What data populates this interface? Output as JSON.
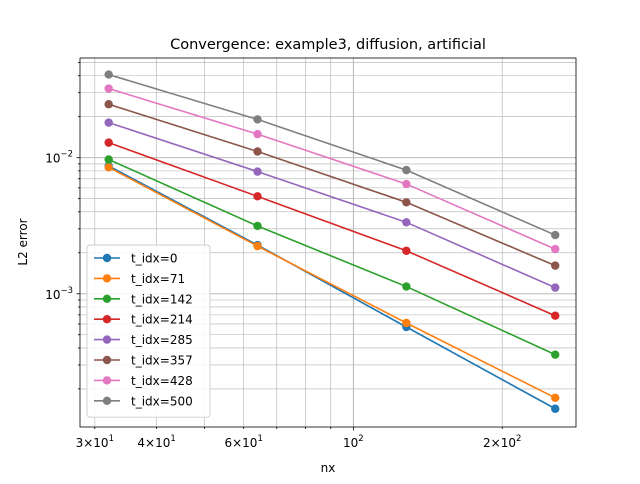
{
  "chart_data": {
    "type": "line",
    "title": "Convergence: example3, diffusion, artificial",
    "xlabel": "nx",
    "ylabel": "L2 error",
    "xscale": "log",
    "yscale": "log",
    "xlim": [
      28,
      282
    ],
    "ylim": [
      0.000105,
      0.054
    ],
    "grid": true,
    "legend_loc": "lower-left",
    "x": [
      32,
      64,
      128,
      256
    ],
    "x_ticks": [
      {
        "value": 30,
        "base": "3×10",
        "exp": "1"
      },
      {
        "value": 40,
        "base": "4×10",
        "exp": "1"
      },
      {
        "value": 60,
        "base": "6×10",
        "exp": "1"
      },
      {
        "value": 100,
        "base": "10",
        "exp": "2"
      },
      {
        "value": 200,
        "base": "2×10",
        "exp": "2"
      }
    ],
    "y_ticks": [
      {
        "value": 0.001,
        "base": "10",
        "exp": "−3"
      },
      {
        "value": 0.01,
        "base": "10",
        "exp": "−2"
      }
    ],
    "series": [
      {
        "name": "t_idx=0",
        "color": "#1f77b4",
        "values": [
          0.0087,
          0.00228,
          0.00057,
          0.000143
        ]
      },
      {
        "name": "t_idx=71",
        "color": "#ff7f0e",
        "values": [
          0.0085,
          0.00224,
          0.00061,
          0.000172
        ]
      },
      {
        "name": "t_idx=142",
        "color": "#2ca02c",
        "values": [
          0.0097,
          0.00315,
          0.00113,
          0.000357
        ]
      },
      {
        "name": "t_idx=214",
        "color": "#d62728",
        "values": [
          0.0129,
          0.0052,
          0.00207,
          0.00069
        ]
      },
      {
        "name": "t_idx=285",
        "color": "#9467bd",
        "values": [
          0.0181,
          0.0079,
          0.00335,
          0.00111
        ]
      },
      {
        "name": "t_idx=357",
        "color": "#8c564b",
        "values": [
          0.0247,
          0.0111,
          0.0047,
          0.00161
        ]
      },
      {
        "name": "t_idx=428",
        "color": "#e377c2",
        "values": [
          0.0322,
          0.0149,
          0.0064,
          0.00213
        ]
      },
      {
        "name": "t_idx=500",
        "color": "#7f7f7f",
        "values": [
          0.0408,
          0.0191,
          0.0081,
          0.0027
        ]
      }
    ]
  }
}
